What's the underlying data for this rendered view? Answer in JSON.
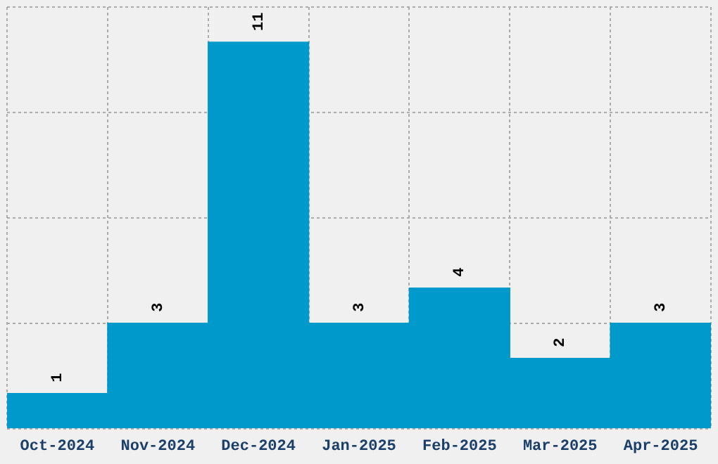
{
  "chart_data": {
    "type": "bar",
    "categories": [
      "Oct-2024",
      "Nov-2024",
      "Dec-2024",
      "Jan-2025",
      "Feb-2025",
      "Mar-2025",
      "Apr-2025"
    ],
    "values": [
      1,
      3,
      11,
      3,
      4,
      2,
      3
    ],
    "color": "#0099cc",
    "ylim": [
      0,
      12
    ],
    "yticks": [
      {
        "value": 0,
        "label": null
      },
      {
        "value": 3,
        "label": null
      },
      {
        "value": 6,
        "label": null
      },
      {
        "value": 9,
        "label": null
      },
      {
        "value": 12,
        "label": null
      }
    ],
    "tick_labels": "x",
    "grid": true,
    "legend": false,
    "data_labels": true
  }
}
